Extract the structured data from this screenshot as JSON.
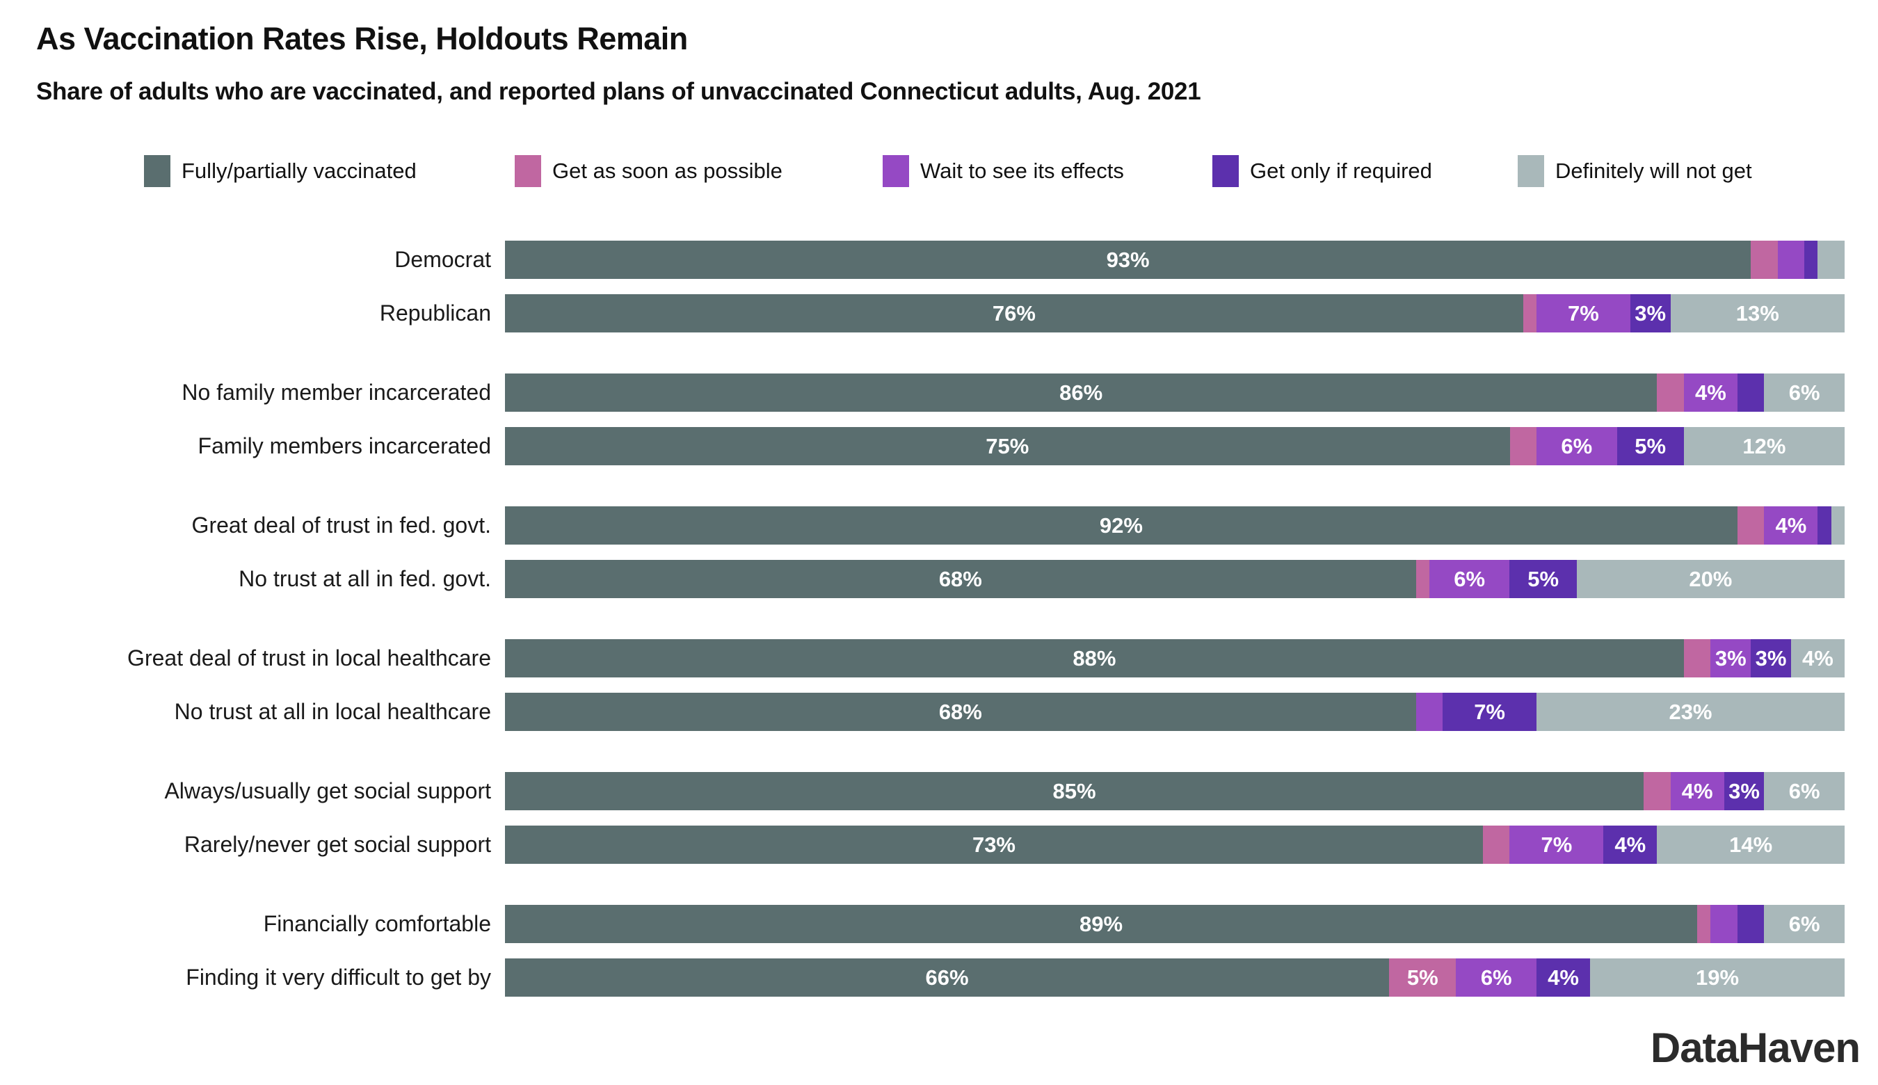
{
  "title": "As Vaccination Rates Rise, Holdouts Remain",
  "subtitle": "Share of adults who are vaccinated, and reported plans of unvaccinated Connecticut adults, Aug. 2021",
  "branding": {
    "logo": "DataHaven"
  },
  "chart_data": {
    "type": "bar",
    "orientation": "horizontal",
    "stacked": true,
    "units": "percent",
    "xlim": [
      0,
      100
    ],
    "legend_position": "top",
    "label_min_percent": 3,
    "series": [
      {
        "name": "Fully/partially vaccinated",
        "color": "#5a6e6f"
      },
      {
        "name": "Get as soon as possible",
        "color": "#c067a1"
      },
      {
        "name": "Wait to see its effects",
        "color": "#9549c4"
      },
      {
        "name": "Get only if required",
        "color": "#5c30ad"
      },
      {
        "name": "Definitely will not get",
        "color": "#a9b8ba"
      }
    ],
    "groups": [
      {
        "rows": [
          {
            "label": "Democrat",
            "values": [
              93,
              2,
              2,
              1,
              2
            ]
          },
          {
            "label": "Republican",
            "values": [
              76,
              1,
              7,
              3,
              13
            ]
          }
        ]
      },
      {
        "rows": [
          {
            "label": "No family member incarcerated",
            "values": [
              86,
              2,
              4,
              2,
              6
            ]
          },
          {
            "label": "Family members incarcerated",
            "values": [
              75,
              2,
              6,
              5,
              12
            ]
          }
        ]
      },
      {
        "rows": [
          {
            "label": "Great deal of trust in fed. govt.",
            "values": [
              92,
              2,
              4,
              1,
              1
            ]
          },
          {
            "label": "No trust at all in fed. govt.",
            "values": [
              68,
              1,
              6,
              5,
              20
            ]
          }
        ]
      },
      {
        "rows": [
          {
            "label": "Great deal of trust in local healthcare",
            "values": [
              88,
              2,
              3,
              3,
              4
            ]
          },
          {
            "label": "No trust at all in local healthcare",
            "values": [
              68,
              0,
              2,
              7,
              23
            ]
          }
        ]
      },
      {
        "rows": [
          {
            "label": "Always/usually get social support",
            "values": [
              85,
              2,
              4,
              3,
              6
            ]
          },
          {
            "label": "Rarely/never get social support",
            "values": [
              73,
              2,
              7,
              4,
              14
            ]
          }
        ]
      },
      {
        "rows": [
          {
            "label": "Financially comfortable",
            "values": [
              89,
              1,
              2,
              2,
              6
            ]
          },
          {
            "label": "Finding it very difficult to get by",
            "values": [
              66,
              5,
              6,
              4,
              19
            ]
          }
        ]
      }
    ]
  }
}
